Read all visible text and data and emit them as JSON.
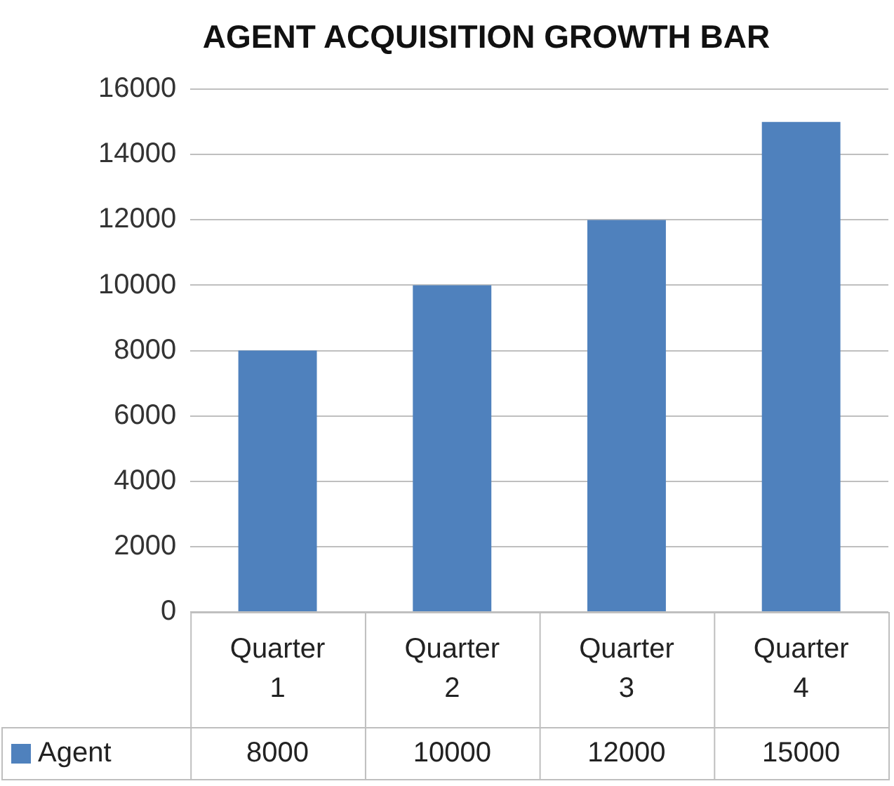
{
  "chart_data": {
    "type": "bar",
    "title": "AGENT ACQUISITION GROWTH BAR",
    "categories": [
      "Quarter 1",
      "Quarter 2",
      "Quarter 3",
      "Quarter 4"
    ],
    "series": [
      {
        "name": "Agent",
        "color": "#4f81bd",
        "values": [
          8000,
          10000,
          12000,
          15000
        ]
      }
    ],
    "ylim": [
      0,
      16000
    ],
    "yticks": [
      0,
      2000,
      4000,
      6000,
      8000,
      10000,
      12000,
      14000,
      16000
    ],
    "grid": "y",
    "legend": "bottom",
    "data_labels": true
  }
}
